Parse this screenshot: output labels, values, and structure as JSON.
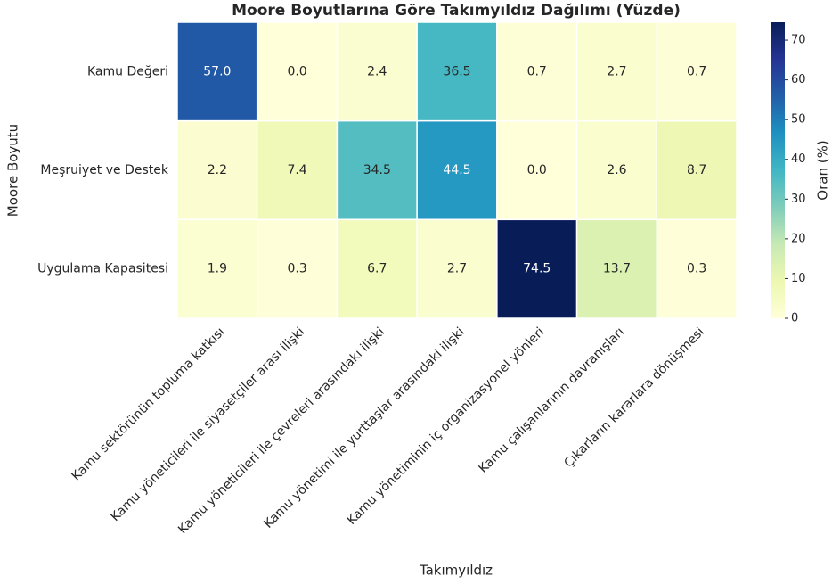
{
  "chart_data": {
    "type": "heatmap",
    "title": "Moore Boyutlarına Göre Takımyıldız Dağılımı (Yüzde)",
    "xlabel": "Takımyıldız",
    "ylabel": "Moore Boyutu",
    "colorbar_label": "Oran (%)",
    "colormap": "YlGnBu",
    "x_categories": [
      "Kamu sektörünün topluma katkısı",
      "Kamu yöneticileri ile siyasetçiler arası ilişki",
      "Kamu yöneticileri ile çevreleri arasındaki ilişki",
      "Kamu yönetimi ile yurttaşlar arasındaki ilişki",
      "Kamu yönetiminin iç organizasyonel yönleri",
      "Kamu çalışanlarının davranışları",
      "Çıkarların kararlara dönüşmesi"
    ],
    "y_categories": [
      "Kamu Değeri",
      "Meşruiyet ve Destek",
      "Uygulama Kapasitesi"
    ],
    "values": [
      [
        57.0,
        0.0,
        2.4,
        36.5,
        0.7,
        2.7,
        0.7
      ],
      [
        2.2,
        7.4,
        34.5,
        44.5,
        0.0,
        2.6,
        8.7
      ],
      [
        1.9,
        0.3,
        6.7,
        2.7,
        74.5,
        13.7,
        0.3
      ]
    ],
    "value_labels": [
      [
        "57.0",
        "0.0",
        "2.4",
        "36.5",
        "0.7",
        "2.7",
        "0.7"
      ],
      [
        "2.2",
        "7.4",
        "34.5",
        "44.5",
        "0.0",
        "2.6",
        "8.7"
      ],
      [
        "1.9",
        "0.3",
        "6.7",
        "2.7",
        "74.5",
        "13.7",
        "0.3"
      ]
    ],
    "clim": [
      0,
      74.5
    ],
    "cticks": [
      0,
      10,
      20,
      30,
      40,
      50,
      60,
      70
    ]
  }
}
